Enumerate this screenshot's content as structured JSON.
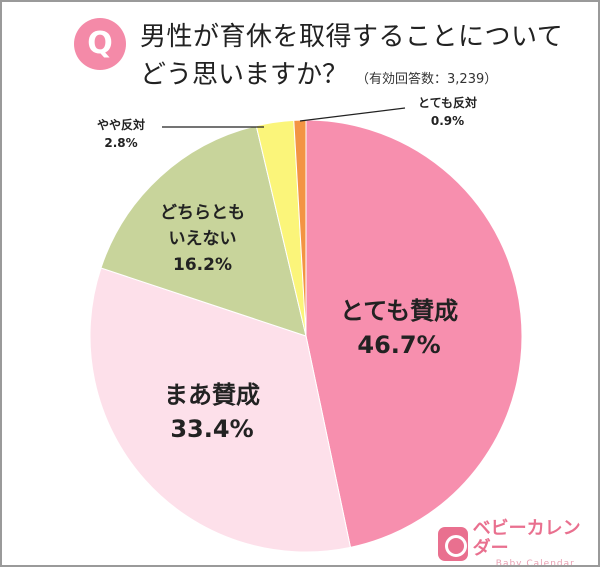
{
  "header": {
    "badge": "Q",
    "title_line1": "男性が育休を取得することについて",
    "title_line2": "どう思いますか？",
    "subtitle": "（有効回答数：3,239）"
  },
  "labels": {
    "totemo_sansei": {
      "name": "とても賛成",
      "pct": "46.7%"
    },
    "maa_sansei": {
      "name": "まあ賛成",
      "pct": "33.4%"
    },
    "dochira_line1": "どちらとも",
    "dochira_line2": "いえない",
    "dochira_pct": "16.2%",
    "yaya_hantai": {
      "name": "やや反対",
      "pct": "2.8%"
    },
    "totemo_hantai": {
      "name": "とても反対",
      "pct": "0.9%"
    }
  },
  "logo": {
    "jp": "ベビーカレンダー",
    "en": "Baby Calendar"
  },
  "chart_data": {
    "type": "pie",
    "title": "男性が育休を取得することについてどう思いますか？",
    "subtitle": "（有効回答数：3,239）",
    "start_angle": "12 o'clock, clockwise",
    "categories": [
      "とても賛成",
      "まあ賛成",
      "どちらともいえない",
      "やや反対",
      "とても反対"
    ],
    "values": [
      46.7,
      33.4,
      16.2,
      2.8,
      0.9
    ],
    "colors": [
      "#f78fae",
      "#fde0ea",
      "#c8d49b",
      "#fbf57a",
      "#f39443"
    ],
    "n": 3239
  }
}
